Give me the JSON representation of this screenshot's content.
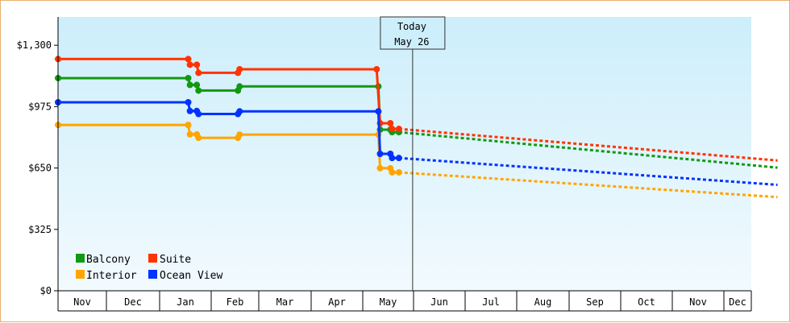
{
  "chart_data": {
    "type": "line",
    "ylim": [
      0,
      1450
    ],
    "y_ticks": [
      {
        "value": 0,
        "label": "$0"
      },
      {
        "value": 325,
        "label": "$325"
      },
      {
        "value": 650,
        "label": "$650"
      },
      {
        "value": 975,
        "label": "$975"
      },
      {
        "value": 1300,
        "label": "$1,300"
      }
    ],
    "x_months": [
      "Nov",
      "Dec",
      "Jan",
      "Feb",
      "Mar",
      "Apr",
      "May",
      "Jun",
      "Jul",
      "Aug",
      "Sep",
      "Oct",
      "Nov",
      "Dec"
    ],
    "today": {
      "line1": "Today",
      "line2": "May 26",
      "day": 207
    },
    "grid": false,
    "legend_position": "bottom-left",
    "series": [
      {
        "name": "Balcony",
        "color": "#119911",
        "points": [
          [
            0,
            1126
          ],
          [
            76,
            1126
          ],
          [
            77,
            1090
          ],
          [
            81,
            1090
          ],
          [
            82,
            1060
          ],
          [
            105,
            1060
          ],
          [
            106,
            1082
          ],
          [
            187,
            1082
          ],
          [
            188,
            853
          ],
          [
            194,
            853
          ],
          [
            195,
            840
          ],
          [
            199,
            840
          ]
        ],
        "forecast": [
          [
            199,
            840
          ],
          [
            420,
            652
          ]
        ]
      },
      {
        "name": "Suite",
        "color": "#ff3300",
        "points": [
          [
            0,
            1227
          ],
          [
            76,
            1227
          ],
          [
            77,
            1197
          ],
          [
            81,
            1197
          ],
          [
            82,
            1154
          ],
          [
            105,
            1154
          ],
          [
            106,
            1173
          ],
          [
            186,
            1173
          ],
          [
            188,
            887
          ],
          [
            194,
            887
          ],
          [
            195,
            857
          ],
          [
            199,
            857
          ]
        ],
        "forecast": [
          [
            199,
            857
          ],
          [
            420,
            690
          ]
        ]
      },
      {
        "name": "Interior",
        "color": "#ffa500",
        "points": [
          [
            0,
            878
          ],
          [
            76,
            878
          ],
          [
            77,
            828
          ],
          [
            81,
            828
          ],
          [
            82,
            810
          ],
          [
            105,
            810
          ],
          [
            106,
            827
          ],
          [
            187,
            827
          ],
          [
            188,
            649
          ],
          [
            194,
            649
          ],
          [
            195,
            627
          ],
          [
            199,
            627
          ]
        ],
        "forecast": [
          [
            199,
            627
          ],
          [
            420,
            496
          ]
        ]
      },
      {
        "name": "Ocean View",
        "color": "#0033ff",
        "points": [
          [
            0,
            998
          ],
          [
            76,
            998
          ],
          [
            77,
            952
          ],
          [
            81,
            952
          ],
          [
            82,
            936
          ],
          [
            105,
            936
          ],
          [
            106,
            950
          ],
          [
            187,
            950
          ],
          [
            188,
            725
          ],
          [
            194,
            725
          ],
          [
            195,
            703
          ],
          [
            199,
            703
          ]
        ],
        "forecast": [
          [
            199,
            703
          ],
          [
            420,
            561
          ]
        ]
      }
    ],
    "legend": [
      {
        "label": "Balcony",
        "color": "#119911"
      },
      {
        "label": "Suite",
        "color": "#ff3300"
      },
      {
        "label": "Interior",
        "color": "#ffa500"
      },
      {
        "label": "Ocean View",
        "color": "#0033ff"
      }
    ]
  }
}
